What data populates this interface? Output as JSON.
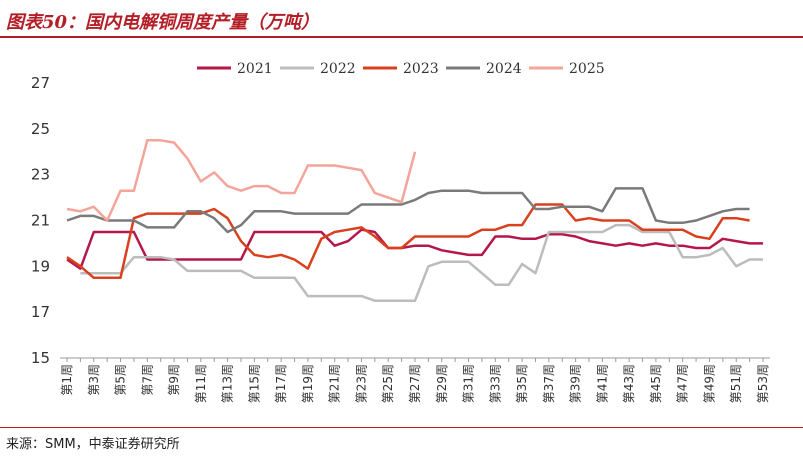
{
  "header": {
    "title": "图表50：国内电解铜周度产量（万吨）"
  },
  "footer": {
    "source": "来源：SMM，中泰证券研究所"
  },
  "chart_data": {
    "type": "line",
    "title": "图表50：国内电解铜周度产量（万吨）",
    "xlabel": "",
    "ylabel": "",
    "ylim": [
      15,
      27
    ],
    "yticks": [
      15,
      17,
      19,
      21,
      23,
      25,
      27
    ],
    "legend_position": "top-center",
    "grid": false,
    "x": [
      "第1周",
      "第2周",
      "第3周",
      "第4周",
      "第5周",
      "第6周",
      "第7周",
      "第8周",
      "第9周",
      "第10周",
      "第11周",
      "第12周",
      "第13周",
      "第14周",
      "第15周",
      "第16周",
      "第17周",
      "第18周",
      "第19周",
      "第20周",
      "第21周",
      "第22周",
      "第23周",
      "第24周",
      "第25周",
      "第26周",
      "第27周",
      "第28周",
      "第29周",
      "第30周",
      "第31周",
      "第32周",
      "第33周",
      "第34周",
      "第35周",
      "第36周",
      "第37周",
      "第38周",
      "第39周",
      "第40周",
      "第41周",
      "第42周",
      "第43周",
      "第44周",
      "第45周",
      "第46周",
      "第47周",
      "第48周",
      "第49周",
      "第50周",
      "第51周",
      "第52周",
      "第53周"
    ],
    "x_tick_labels": [
      "第1周",
      "第3周",
      "第5周",
      "第7周",
      "第9周",
      "第11周",
      "第13周",
      "第15周",
      "第17周",
      "第19周",
      "第21周",
      "第23周",
      "第25周",
      "第27周",
      "第29周",
      "第31周",
      "第33周",
      "第35周",
      "第37周",
      "第39周",
      "第41周",
      "第43周",
      "第45周",
      "第47周",
      "第49周",
      "第51周",
      "第53周"
    ],
    "series": [
      {
        "name": "2021",
        "color": "#b5174a",
        "values": [
          19.3,
          18.9,
          20.5,
          20.5,
          20.5,
          20.5,
          19.3,
          19.3,
          19.3,
          19.3,
          19.3,
          19.3,
          19.3,
          19.3,
          20.5,
          20.5,
          20.5,
          20.5,
          20.5,
          20.5,
          19.9,
          20.1,
          20.6,
          20.5,
          19.8,
          19.8,
          19.9,
          19.9,
          19.7,
          19.6,
          19.5,
          19.5,
          20.3,
          20.3,
          20.2,
          20.2,
          20.4,
          20.4,
          20.3,
          20.1,
          20.0,
          19.9,
          20.0,
          19.9,
          20.0,
          19.9,
          19.9,
          19.8,
          19.8,
          20.2,
          20.1,
          20.0,
          20.0
        ]
      },
      {
        "name": "2022",
        "color": "#bcbcbc",
        "values": [
          null,
          18.7,
          18.7,
          18.7,
          18.7,
          19.4,
          19.4,
          19.4,
          19.3,
          18.8,
          18.8,
          18.8,
          18.8,
          18.8,
          18.5,
          18.5,
          18.5,
          18.5,
          17.7,
          17.7,
          17.7,
          17.7,
          17.7,
          17.5,
          17.5,
          17.5,
          17.5,
          19.0,
          19.2,
          19.2,
          19.2,
          18.7,
          18.2,
          18.2,
          19.1,
          18.7,
          20.5,
          20.5,
          20.5,
          20.5,
          20.5,
          20.8,
          20.8,
          20.5,
          20.5,
          20.5,
          19.4,
          19.4,
          19.5,
          19.8,
          19.0,
          19.3,
          19.3
        ]
      },
      {
        "name": "2023",
        "color": "#d9411e",
        "values": [
          19.4,
          19.0,
          18.5,
          18.5,
          18.5,
          21.1,
          21.3,
          21.3,
          21.3,
          21.3,
          21.3,
          21.5,
          21.1,
          20.1,
          19.5,
          19.4,
          19.5,
          19.3,
          18.9,
          20.2,
          20.5,
          20.6,
          20.7,
          20.3,
          19.8,
          19.8,
          20.3,
          20.3,
          20.3,
          20.3,
          20.3,
          20.6,
          20.6,
          20.8,
          20.8,
          21.7,
          21.7,
          21.7,
          21.0,
          21.1,
          21.0,
          21.0,
          21.0,
          20.6,
          20.6,
          20.6,
          20.6,
          20.3,
          20.2,
          21.1,
          21.1,
          21.0,
          null
        ]
      },
      {
        "name": "2024",
        "color": "#7a7a7a",
        "values": [
          21.0,
          21.2,
          21.2,
          21.0,
          21.0,
          21.0,
          20.7,
          20.7,
          20.7,
          21.4,
          21.4,
          21.1,
          20.5,
          20.8,
          21.4,
          21.4,
          21.4,
          21.3,
          21.3,
          21.3,
          21.3,
          21.3,
          21.7,
          21.7,
          21.7,
          21.7,
          21.9,
          22.2,
          22.3,
          22.3,
          22.3,
          22.2,
          22.2,
          22.2,
          22.2,
          21.5,
          21.5,
          21.6,
          21.6,
          21.6,
          21.4,
          22.4,
          22.4,
          22.4,
          21.0,
          20.9,
          20.9,
          21.0,
          21.2,
          21.4,
          21.5,
          21.5,
          null
        ]
      },
      {
        "name": "2025",
        "color": "#f4a49a",
        "values": [
          21.5,
          21.4,
          21.6,
          21.0,
          22.3,
          22.3,
          24.5,
          24.5,
          24.4,
          23.7,
          22.7,
          23.1,
          22.5,
          22.3,
          22.5,
          22.5,
          22.2,
          22.2,
          23.4,
          23.4,
          23.4,
          23.3,
          23.2,
          22.2,
          22.0,
          21.8,
          24.0,
          null,
          null,
          null,
          null,
          null,
          null,
          null,
          null,
          null,
          null,
          null,
          null,
          null,
          null,
          null,
          null,
          null,
          null,
          null,
          null,
          null,
          null,
          null,
          null,
          null,
          null
        ]
      }
    ]
  }
}
